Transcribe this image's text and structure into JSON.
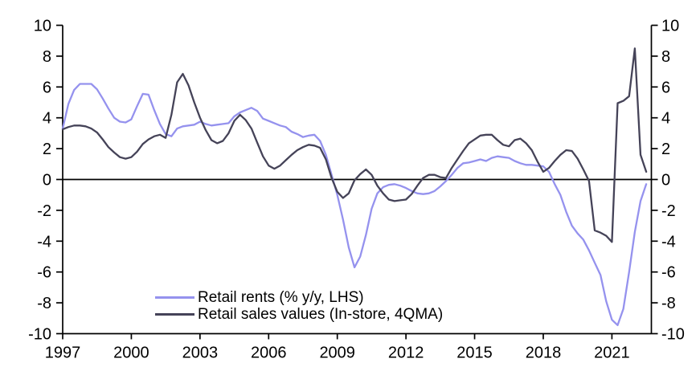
{
  "chart_data": {
    "type": "line",
    "title": "",
    "xlabel": "",
    "ylabel": "",
    "ylim": [
      -10,
      10
    ],
    "y_ticks": [
      -10,
      -8,
      -6,
      -4,
      -2,
      0,
      2,
      4,
      6,
      8,
      10
    ],
    "y_axis_sides": "both",
    "x_tick_years": [
      1997,
      2000,
      2003,
      2006,
      2009,
      2012,
      2015,
      2018,
      2021
    ],
    "x_tick_labels": [
      "1997",
      "2000",
      "2003",
      "2006",
      "2009",
      "2012",
      "2015",
      "2018",
      "2021"
    ],
    "grid": false,
    "zero_line": true,
    "legend_position": "inside-bottom-left",
    "x_start": 1997,
    "x_step": 0.25,
    "series": [
      {
        "name": "Retail rents (% y/y, LHS)",
        "color": "#9592EE",
        "values": [
          3.3,
          4.9,
          5.8,
          6.2,
          6.2,
          6.2,
          5.85,
          5.25,
          4.6,
          4.0,
          3.75,
          3.7,
          3.9,
          4.75,
          5.55,
          5.5,
          4.5,
          3.6,
          2.95,
          2.8,
          3.3,
          3.45,
          3.5,
          3.55,
          3.75,
          3.6,
          3.5,
          3.55,
          3.6,
          3.65,
          4.1,
          4.35,
          4.5,
          4.65,
          4.45,
          3.95,
          3.8,
          3.65,
          3.5,
          3.4,
          3.1,
          2.95,
          2.75,
          2.85,
          2.9,
          2.5,
          1.6,
          0.3,
          -1.0,
          -2.6,
          -4.4,
          -5.7,
          -5.0,
          -3.6,
          -1.9,
          -0.9,
          -0.5,
          -0.35,
          -0.3,
          -0.4,
          -0.55,
          -0.75,
          -0.9,
          -0.95,
          -0.9,
          -0.75,
          -0.45,
          -0.1,
          0.3,
          0.75,
          1.05,
          1.1,
          1.2,
          1.3,
          1.2,
          1.4,
          1.5,
          1.45,
          1.4,
          1.2,
          1.05,
          0.95,
          0.95,
          0.9,
          0.85,
          0.5,
          -0.3,
          -1.0,
          -2.1,
          -3.0,
          -3.5,
          -3.9,
          -4.6,
          -5.4,
          -6.2,
          -7.9,
          -9.1,
          -9.45,
          -8.4,
          -6.0,
          -3.4,
          -1.4,
          -0.3
        ]
      },
      {
        "name": "Retail sales values (In-store, 4QMA)",
        "color": "#454358",
        "values": [
          3.25,
          3.4,
          3.5,
          3.5,
          3.45,
          3.3,
          3.05,
          2.6,
          2.1,
          1.75,
          1.45,
          1.35,
          1.45,
          1.8,
          2.3,
          2.6,
          2.8,
          2.9,
          2.7,
          4.2,
          6.3,
          6.85,
          6.1,
          5.0,
          4.0,
          3.2,
          2.55,
          2.35,
          2.5,
          3.0,
          3.8,
          4.2,
          3.85,
          3.3,
          2.4,
          1.5,
          0.9,
          0.7,
          0.9,
          1.25,
          1.6,
          1.9,
          2.1,
          2.25,
          2.2,
          2.05,
          1.3,
          0.1,
          -0.8,
          -1.2,
          -0.9,
          -0.05,
          0.35,
          0.65,
          0.3,
          -0.4,
          -0.9,
          -1.3,
          -1.4,
          -1.35,
          -1.3,
          -0.95,
          -0.4,
          0.1,
          0.3,
          0.3,
          0.15,
          0.1,
          0.75,
          1.3,
          1.85,
          2.35,
          2.6,
          2.85,
          2.9,
          2.9,
          2.55,
          2.25,
          2.15,
          2.55,
          2.65,
          2.35,
          1.9,
          1.15,
          0.5,
          0.75,
          1.2,
          1.6,
          1.9,
          1.85,
          1.35,
          0.65,
          -0.1,
          -3.3,
          -3.45,
          -3.65,
          -4.05,
          4.95,
          5.1,
          5.4,
          8.5,
          1.6,
          0.5
        ]
      }
    ]
  },
  "legend": {
    "rents_label": "Retail rents (% y/y, LHS)",
    "sales_label": "Retail sales values (In-store, 4QMA)"
  }
}
